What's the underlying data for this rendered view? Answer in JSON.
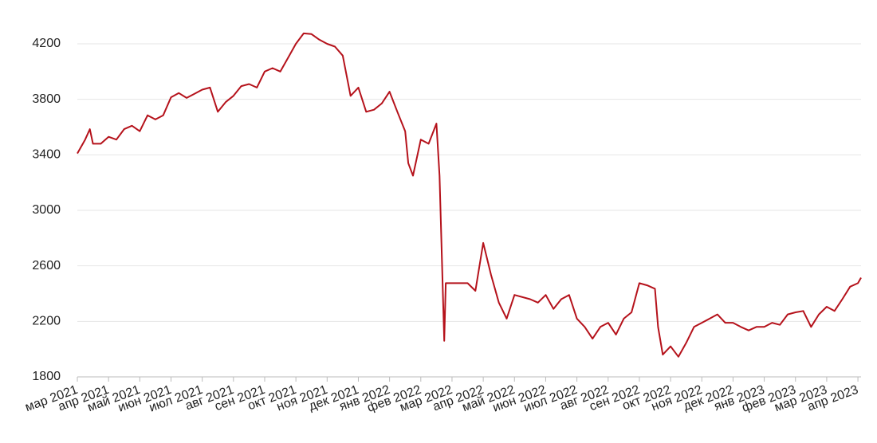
{
  "chart_data": {
    "type": "line",
    "x": [
      0,
      0.25,
      0.4,
      0.5,
      0.75,
      1,
      1.25,
      1.5,
      1.75,
      2,
      2.25,
      2.5,
      2.75,
      3,
      3.25,
      3.5,
      3.75,
      4,
      4.25,
      4.5,
      4.75,
      5,
      5.25,
      5.5,
      5.75,
      6,
      6.25,
      6.5,
      6.75,
      7,
      7.25,
      7.5,
      7.75,
      8,
      8.25,
      8.5,
      8.75,
      9,
      9.25,
      9.5,
      9.75,
      10,
      10.25,
      10.5,
      10.6,
      10.75,
      11,
      11.25,
      11.5,
      11.6,
      11.75,
      11.8,
      12.5,
      12.75,
      13,
      13.25,
      13.5,
      13.75,
      14,
      14.5,
      14.75,
      15,
      15.25,
      15.5,
      15.75,
      16,
      16.25,
      16.5,
      16.75,
      17,
      17.25,
      17.5,
      17.75,
      18,
      18.25,
      18.5,
      18.6,
      18.75,
      19,
      19.25,
      19.5,
      19.75,
      20,
      20.25,
      20.5,
      20.75,
      21,
      21.25,
      21.5,
      21.75,
      22,
      22.25,
      22.5,
      22.75,
      23,
      23.25,
      23.5,
      23.75,
      24,
      24.25,
      24.5,
      24.75,
      25,
      25.1
    ],
    "series": [
      {
        "color": "#b5121b",
        "values": [
          3410,
          3510,
          3585,
          3480,
          3480,
          3530,
          3510,
          3585,
          3610,
          3570,
          3685,
          3655,
          3685,
          3815,
          3845,
          3810,
          3840,
          3870,
          3885,
          3710,
          3780,
          3825,
          3895,
          3910,
          3885,
          4000,
          4025,
          4000,
          4100,
          4200,
          4275,
          4270,
          4230,
          4200,
          4180,
          4115,
          3825,
          3885,
          3710,
          3725,
          3770,
          3855,
          3710,
          3570,
          3340,
          3250,
          3510,
          3480,
          3625,
          3250,
          2060,
          2475,
          2475,
          2420,
          2765,
          2535,
          2335,
          2220,
          2390,
          2360,
          2335,
          2390,
          2290,
          2360,
          2390,
          2220,
          2160,
          2075,
          2160,
          2190,
          2105,
          2220,
          2265,
          2475,
          2460,
          2435,
          2160,
          1960,
          2020,
          1945,
          2045,
          2160,
          2190,
          2220,
          2250,
          2190,
          2190,
          2160,
          2135,
          2160,
          2160,
          2190,
          2175,
          2250,
          2265,
          2275,
          2160,
          2250,
          2305,
          2275,
          2360,
          2450,
          2475,
          2515
        ]
      }
    ],
    "xlim": [
      0,
      25.1
    ],
    "xticks": [
      {
        "value": 0,
        "label": "мар 2021"
      },
      {
        "value": 1,
        "label": "апр 2021"
      },
      {
        "value": 2,
        "label": "май 2021"
      },
      {
        "value": 3,
        "label": "июн 2021"
      },
      {
        "value": 4,
        "label": "июл 2021"
      },
      {
        "value": 5,
        "label": "авг 2021"
      },
      {
        "value": 6,
        "label": "сен 2021"
      },
      {
        "value": 7,
        "label": "окт 2021"
      },
      {
        "value": 8,
        "label": "ноя 2021"
      },
      {
        "value": 9,
        "label": "дек 2021"
      },
      {
        "value": 10,
        "label": "янв 2022"
      },
      {
        "value": 11,
        "label": "фев 2022"
      },
      {
        "value": 12,
        "label": "мар 2022"
      },
      {
        "value": 13,
        "label": "апр 2022"
      },
      {
        "value": 14,
        "label": "май 2022"
      },
      {
        "value": 15,
        "label": "июн 2022"
      },
      {
        "value": 16,
        "label": "июл 2022"
      },
      {
        "value": 17,
        "label": "авг 2022"
      },
      {
        "value": 18,
        "label": "сен 2022"
      },
      {
        "value": 19,
        "label": "окт 2022"
      },
      {
        "value": 20,
        "label": "ноя 2022"
      },
      {
        "value": 21,
        "label": "дек 2022"
      },
      {
        "value": 22,
        "label": "янв 2023"
      },
      {
        "value": 23,
        "label": "фев 2023"
      },
      {
        "value": 24,
        "label": "мар 2023"
      },
      {
        "value": 25,
        "label": "апр 2023"
      }
    ],
    "ylim": [
      1800,
      4200
    ],
    "yticks": [
      1800,
      2200,
      2600,
      3000,
      3400,
      3800,
      4200
    ],
    "grid": true
  }
}
